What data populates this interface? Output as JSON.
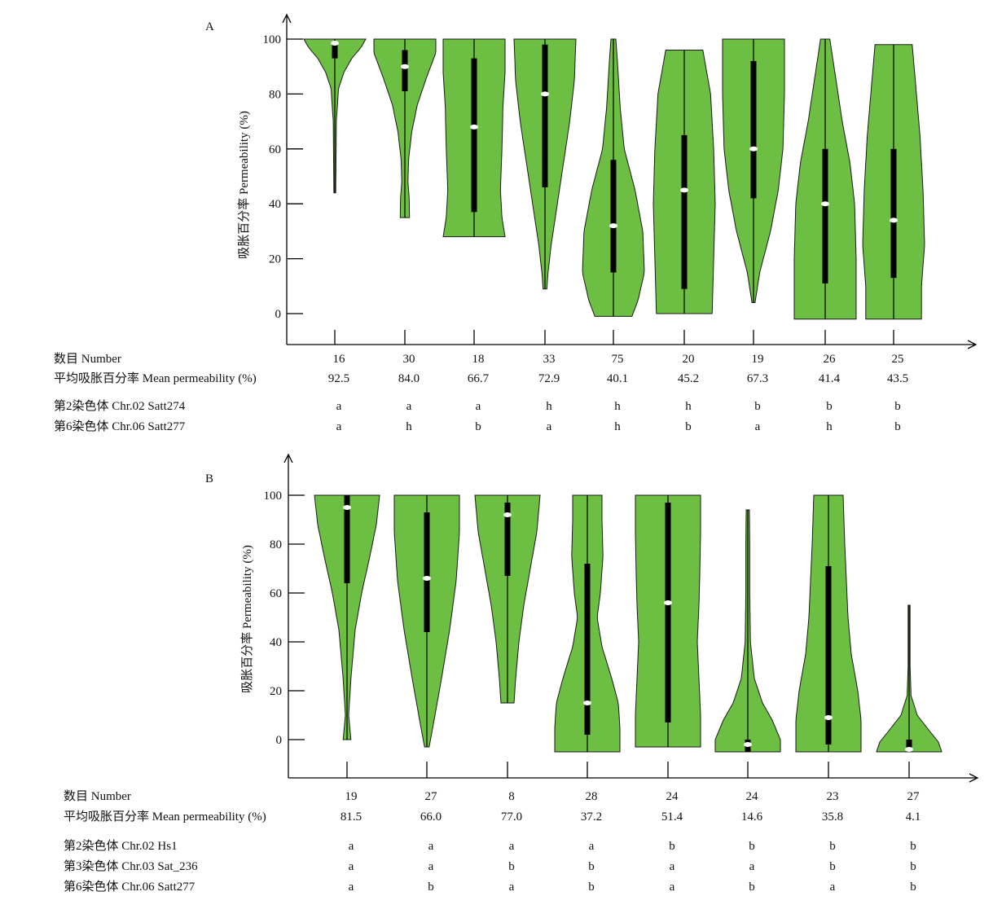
{
  "colors": {
    "violin_fill": "#6cbf42",
    "violin_stroke": "#1a1a1a",
    "box": "#000000",
    "median": "#ffffff",
    "axis": "#000000"
  },
  "chart_data": [
    {
      "type": "violin",
      "panel_label": "A",
      "ylabel": "吸胀百分率 Permeability (%)",
      "yticks": [
        0,
        20,
        40,
        60,
        80,
        100
      ],
      "ylim": [
        -2,
        100
      ],
      "grid": false,
      "row_labels": {
        "number": "数目 Number",
        "mean": "平均吸胀百分率 Mean permeability (%)",
        "markers": [
          "第2染色体 Chr.02  Satt274",
          "第6染色体 Chr.06  Satt277"
        ]
      },
      "groups": [
        {
          "number": "16",
          "mean": "92.5",
          "genotypes": [
            "a",
            "a"
          ],
          "min": 44,
          "max": 100,
          "q1": 93,
          "q3": 99,
          "median": 98.5,
          "density": [
            [
              44,
              0.03
            ],
            [
              70,
              0.05
            ],
            [
              82,
              0.12
            ],
            [
              88,
              0.3
            ],
            [
              93,
              0.55
            ],
            [
              97,
              0.85
            ],
            [
              100,
              1
            ]
          ]
        },
        {
          "number": "30",
          "mean": "84.0",
          "genotypes": [
            "a",
            "h"
          ],
          "min": 35,
          "max": 100,
          "q1": 81,
          "q3": 96,
          "median": 90,
          "density": [
            [
              35,
              0.15
            ],
            [
              42,
              0.14
            ],
            [
              48,
              0.1
            ],
            [
              56,
              0.12
            ],
            [
              66,
              0.22
            ],
            [
              76,
              0.4
            ],
            [
              86,
              0.7
            ],
            [
              95,
              1
            ],
            [
              100,
              1
            ]
          ]
        },
        {
          "number": "18",
          "mean": "66.7",
          "genotypes": [
            "a",
            "b"
          ],
          "min": 28,
          "max": 100,
          "q1": 37,
          "q3": 93,
          "median": 68,
          "density": [
            [
              28,
              1
            ],
            [
              35,
              0.9
            ],
            [
              45,
              0.85
            ],
            [
              60,
              0.9
            ],
            [
              75,
              0.93
            ],
            [
              88,
              1
            ],
            [
              100,
              1
            ]
          ]
        },
        {
          "number": "33",
          "mean": "72.9",
          "genotypes": [
            "h",
            "a"
          ],
          "min": 9,
          "max": 100,
          "q1": 46,
          "q3": 98,
          "median": 80,
          "density": [
            [
              9,
              0.06
            ],
            [
              15,
              0.1
            ],
            [
              25,
              0.2
            ],
            [
              40,
              0.4
            ],
            [
              55,
              0.6
            ],
            [
              70,
              0.8
            ],
            [
              85,
              0.95
            ],
            [
              100,
              1
            ]
          ]
        },
        {
          "number": "75",
          "mean": "40.1",
          "genotypes": [
            "h",
            "h"
          ],
          "min": -1,
          "max": 100,
          "q1": 15,
          "q3": 56,
          "median": 32,
          "density": [
            [
              -1,
              0.6
            ],
            [
              5,
              0.8
            ],
            [
              15,
              1
            ],
            [
              30,
              0.95
            ],
            [
              45,
              0.7
            ],
            [
              60,
              0.35
            ],
            [
              75,
              0.22
            ],
            [
              90,
              0.14
            ],
            [
              100,
              0.08
            ]
          ]
        },
        {
          "number": "20",
          "mean": "45.2",
          "genotypes": [
            "h",
            "b"
          ],
          "min": 0,
          "max": 96,
          "q1": 9,
          "q3": 65,
          "median": 45,
          "density": [
            [
              0,
              0.9
            ],
            [
              20,
              0.95
            ],
            [
              40,
              1
            ],
            [
              60,
              0.95
            ],
            [
              80,
              0.85
            ],
            [
              96,
              0.6
            ]
          ]
        },
        {
          "number": "19",
          "mean": "67.3",
          "genotypes": [
            "b",
            "a"
          ],
          "min": 4,
          "max": 100,
          "q1": 42,
          "q3": 92,
          "median": 60,
          "density": [
            [
              4,
              0.05
            ],
            [
              15,
              0.2
            ],
            [
              30,
              0.55
            ],
            [
              45,
              0.8
            ],
            [
              60,
              0.95
            ],
            [
              80,
              1
            ],
            [
              100,
              1
            ]
          ]
        },
        {
          "number": "26",
          "mean": "41.4",
          "genotypes": [
            "b",
            "h"
          ],
          "min": -2,
          "max": 100,
          "q1": 11,
          "q3": 60,
          "median": 40,
          "density": [
            [
              -2,
              1
            ],
            [
              20,
              1
            ],
            [
              40,
              0.95
            ],
            [
              55,
              0.8
            ],
            [
              70,
              0.55
            ],
            [
              85,
              0.35
            ],
            [
              100,
              0.15
            ]
          ]
        },
        {
          "number": "25",
          "mean": "43.5",
          "genotypes": [
            "b",
            "b"
          ],
          "min": -2,
          "max": 98,
          "q1": 13,
          "q3": 60,
          "median": 34,
          "density": [
            [
              -2,
              0.9
            ],
            [
              10,
              0.9
            ],
            [
              25,
              1
            ],
            [
              45,
              0.95
            ],
            [
              65,
              0.85
            ],
            [
              85,
              0.7
            ],
            [
              98,
              0.6
            ]
          ]
        }
      ]
    },
    {
      "type": "violin",
      "panel_label": "B",
      "ylabel": "吸胀百分率 Permeability (%)",
      "yticks": [
        0,
        20,
        40,
        60,
        80,
        100
      ],
      "ylim": [
        -5,
        100
      ],
      "grid": false,
      "row_labels": {
        "number": "数目 Number",
        "mean": "平均吸胀百分率 Mean permeability (%)",
        "markers": [
          "第2染色体 Chr.02  Hs1",
          "第3染色体 Chr.03  Sat_236",
          "第6染色体 Chr.06  Satt277"
        ]
      },
      "groups": [
        {
          "number": "19",
          "mean": "81.5",
          "genotypes": [
            "a",
            "a",
            "a"
          ],
          "min": 0,
          "max": 100,
          "q1": 64,
          "q3": 100,
          "median": 95,
          "density": [
            [
              0,
              0.12
            ],
            [
              10,
              0.05
            ],
            [
              25,
              0.12
            ],
            [
              45,
              0.25
            ],
            [
              60,
              0.45
            ],
            [
              75,
              0.7
            ],
            [
              88,
              0.9
            ],
            [
              100,
              1
            ]
          ]
        },
        {
          "number": "27",
          "mean": "66.0",
          "genotypes": [
            "a",
            "a",
            "b"
          ],
          "min": -3,
          "max": 100,
          "q1": 44,
          "q3": 93,
          "median": 66,
          "density": [
            [
              -3,
              0.07
            ],
            [
              10,
              0.25
            ],
            [
              25,
              0.45
            ],
            [
              45,
              0.7
            ],
            [
              65,
              0.9
            ],
            [
              85,
              1
            ],
            [
              100,
              1
            ]
          ]
        },
        {
          "number": "8",
          "mean": "77.0",
          "genotypes": [
            "a",
            "b",
            "a"
          ],
          "min": 15,
          "max": 100,
          "q1": 67,
          "q3": 97,
          "median": 92,
          "density": [
            [
              15,
              0.2
            ],
            [
              25,
              0.25
            ],
            [
              40,
              0.35
            ],
            [
              55,
              0.5
            ],
            [
              70,
              0.7
            ],
            [
              85,
              0.9
            ],
            [
              100,
              1
            ]
          ]
        },
        {
          "number": "28",
          "mean": "37.2",
          "genotypes": [
            "a",
            "b",
            "b"
          ],
          "min": -5,
          "max": 100,
          "q1": 2,
          "q3": 72,
          "median": 15,
          "density": [
            [
              -5,
              1
            ],
            [
              5,
              1
            ],
            [
              15,
              0.95
            ],
            [
              25,
              0.75
            ],
            [
              38,
              0.45
            ],
            [
              50,
              0.3
            ],
            [
              60,
              0.4
            ],
            [
              75,
              0.48
            ],
            [
              90,
              0.45
            ],
            [
              100,
              0.45
            ]
          ]
        },
        {
          "number": "24",
          "mean": "51.4",
          "genotypes": [
            "b",
            "a",
            "a"
          ],
          "min": -3,
          "max": 100,
          "q1": 7,
          "q3": 97,
          "median": 56,
          "density": [
            [
              -3,
              1
            ],
            [
              10,
              1
            ],
            [
              25,
              0.95
            ],
            [
              40,
              0.9
            ],
            [
              55,
              0.95
            ],
            [
              70,
              0.98
            ],
            [
              85,
              1
            ],
            [
              100,
              1
            ]
          ]
        },
        {
          "number": "24",
          "mean": "14.6",
          "genotypes": [
            "b",
            "a",
            "b"
          ],
          "min": -5,
          "max": 94,
          "q1": -5,
          "q3": 0,
          "median": -2,
          "density": [
            [
              -5,
              1
            ],
            [
              0,
              1
            ],
            [
              8,
              0.75
            ],
            [
              15,
              0.45
            ],
            [
              25,
              0.2
            ],
            [
              40,
              0.08
            ],
            [
              60,
              0.06
            ],
            [
              80,
              0.06
            ],
            [
              94,
              0.05
            ]
          ]
        },
        {
          "number": "23",
          "mean": "35.8",
          "genotypes": [
            "b",
            "b",
            "a"
          ],
          "min": -5,
          "max": 100,
          "q1": -2,
          "q3": 71,
          "median": 9,
          "density": [
            [
              -5,
              1
            ],
            [
              8,
              1
            ],
            [
              20,
              0.9
            ],
            [
              35,
              0.7
            ],
            [
              50,
              0.6
            ],
            [
              65,
              0.55
            ],
            [
              80,
              0.5
            ],
            [
              100,
              0.45
            ]
          ]
        },
        {
          "number": "27",
          "mean": "4.1",
          "genotypes": [
            "b",
            "b",
            "b"
          ],
          "min": -5,
          "max": 55,
          "q1": -5,
          "q3": 0,
          "median": -4,
          "density": [
            [
              -5,
              1
            ],
            [
              -1,
              0.9
            ],
            [
              4,
              0.6
            ],
            [
              10,
              0.25
            ],
            [
              18,
              0.06
            ],
            [
              30,
              0.03
            ],
            [
              45,
              0.03
            ],
            [
              55,
              0.03
            ]
          ]
        }
      ]
    }
  ]
}
